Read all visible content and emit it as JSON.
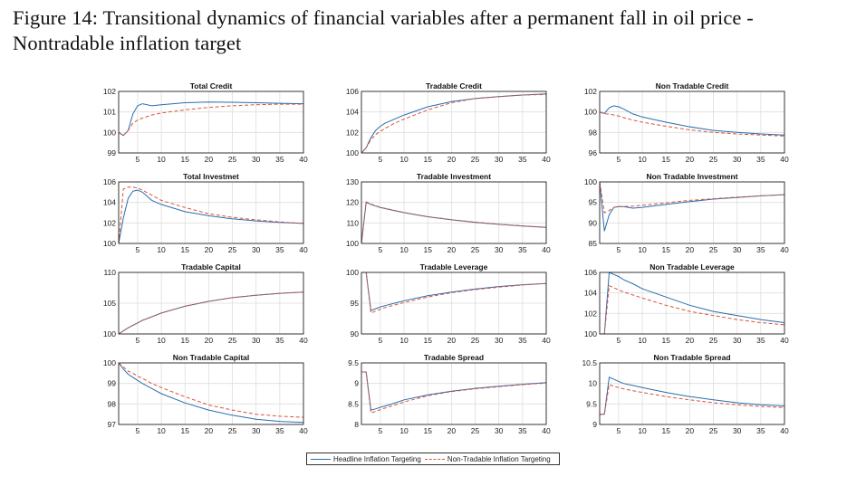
{
  "figure": {
    "title_line1": "Figure 14:  Transitional dynamics of financial variables after a permanent fall in oil price -",
    "title_line2": "Nontradable inflation target"
  },
  "legend": {
    "headline": "Headline Inflation Targeting",
    "nontradable": "Non-Tradable Inflation Targeting"
  },
  "colors": {
    "headline": "#2a6db0",
    "nontradable": "#d9543a",
    "grid": "#dedede"
  },
  "chart_data": {
    "type": "line",
    "x": [
      1,
      2,
      3,
      4,
      5,
      6,
      8,
      10,
      15,
      20,
      25,
      30,
      35,
      40
    ],
    "xlim": [
      1,
      40
    ],
    "xticks": [
      5,
      10,
      15,
      20,
      25,
      30,
      35,
      40
    ],
    "grid": true,
    "legend_placement": "bottom-center",
    "panels": [
      {
        "title": "Total Credit",
        "ylim": [
          99,
          102
        ],
        "yticks": [
          99,
          100,
          101,
          102
        ],
        "series": [
          {
            "name": "Headline Inflation Targeting",
            "values": [
              100,
              99.85,
              100.1,
              100.9,
              101.3,
              101.4,
              101.3,
              101.35,
              101.45,
              101.48,
              101.47,
              101.45,
              101.42,
              101.4
            ]
          },
          {
            "name": "Non-Tradable Inflation Targeting",
            "values": [
              100,
              99.85,
              100.1,
              100.45,
              100.6,
              100.7,
              100.85,
              100.95,
              101.1,
              101.22,
              101.3,
              101.35,
              101.38,
              101.38
            ]
          }
        ]
      },
      {
        "title": "Tradable Credit",
        "ylim": [
          100,
          106
        ],
        "yticks": [
          100,
          102,
          104,
          106
        ],
        "series": [
          {
            "name": "Headline Inflation Targeting",
            "values": [
              100,
              100.5,
              101.5,
              102.2,
              102.6,
              102.9,
              103.3,
              103.7,
              104.5,
              105.0,
              105.3,
              105.5,
              105.65,
              105.75
            ]
          },
          {
            "name": "Non-Tradable Inflation Targeting",
            "values": [
              100,
              100.5,
              101.3,
              101.8,
              102.1,
              102.4,
              102.9,
              103.3,
              104.2,
              104.9,
              105.3,
              105.5,
              105.65,
              105.7
            ]
          }
        ]
      },
      {
        "title": "Non Tradable Credit",
        "ylim": [
          96,
          102
        ],
        "yticks": [
          96,
          98,
          100,
          102
        ],
        "series": [
          {
            "name": "Headline Inflation Targeting",
            "values": [
              100,
              99.85,
              100.4,
              100.6,
              100.5,
              100.3,
              99.8,
              99.5,
              99.0,
              98.55,
              98.2,
              98.0,
              97.85,
              97.75
            ]
          },
          {
            "name": "Non-Tradable Inflation Targeting",
            "values": [
              100,
              99.8,
              99.8,
              99.7,
              99.6,
              99.45,
              99.2,
              99.0,
              98.6,
              98.25,
              98.0,
              97.85,
              97.75,
              97.65
            ]
          }
        ]
      },
      {
        "title": "Total Investmet",
        "ylim": [
          100,
          106
        ],
        "yticks": [
          100,
          102,
          104,
          106
        ],
        "series": [
          {
            "name": "Headline Inflation Targeting",
            "values": [
              100,
              102.5,
              104.4,
              105.1,
              105.2,
              105.0,
              104.2,
              103.8,
              103.1,
              102.7,
              102.4,
              102.2,
              102.05,
              101.95
            ]
          },
          {
            "name": "Non-Tradable Inflation Targeting",
            "values": [
              100,
              105.3,
              105.5,
              105.5,
              105.4,
              105.2,
              104.7,
              104.2,
              103.5,
              102.9,
              102.55,
              102.3,
              102.1,
              101.95
            ]
          }
        ]
      },
      {
        "title": "Tradable Investment",
        "ylim": [
          100,
          130
        ],
        "yticks": [
          100,
          110,
          120,
          130
        ],
        "series": [
          {
            "name": "Headline Inflation Targeting",
            "values": [
              100,
              120,
              119,
              118.2,
              117.5,
              117,
              116,
              115,
              113,
              111.5,
              110.3,
              109.3,
              108.5,
              107.8
            ]
          },
          {
            "name": "Non-Tradable Inflation Targeting",
            "values": [
              100,
              120.3,
              119.2,
              118.4,
              117.6,
              117.1,
              116.1,
              115.1,
              113.1,
              111.6,
              110.4,
              109.4,
              108.6,
              107.9
            ]
          }
        ]
      },
      {
        "title": "Non Tradable Investment",
        "ylim": [
          85,
          100
        ],
        "yticks": [
          85,
          90,
          95,
          100
        ],
        "series": [
          {
            "name": "Headline Inflation Targeting",
            "values": [
              100,
              88,
              92,
              93.8,
              94,
              94,
              93.6,
              93.8,
              94.5,
              95.2,
              95.8,
              96.2,
              96.6,
              96.9
            ]
          },
          {
            "name": "Non-Tradable Inflation Targeting",
            "values": [
              100,
              92.5,
              93,
              93.8,
              94,
              94,
              94.1,
              94.3,
              94.9,
              95.5,
              95.9,
              96.3,
              96.6,
              96.9
            ]
          }
        ]
      },
      {
        "title": "Tradable Capital",
        "ylim": [
          100,
          110
        ],
        "yticks": [
          100,
          105,
          110
        ],
        "series": [
          {
            "name": "Headline Inflation Targeting",
            "values": [
              100,
              100.5,
              101,
              101.4,
              101.8,
              102.2,
              102.8,
              103.4,
              104.5,
              105.3,
              105.9,
              106.3,
              106.6,
              106.8
            ]
          },
          {
            "name": "Non-Tradable Inflation Targeting",
            "values": [
              100,
              100.5,
              101,
              101.4,
              101.8,
              102.2,
              102.8,
              103.4,
              104.5,
              105.3,
              105.9,
              106.3,
              106.6,
              106.8
            ]
          }
        ]
      },
      {
        "title": "Tradable Leverage",
        "ylim": [
          90,
          100
        ],
        "yticks": [
          90,
          95,
          100
        ],
        "series": [
          {
            "name": "Headline Inflation Targeting",
            "values": [
              100,
              100,
              93.8,
              94.1,
              94.4,
              94.6,
              95.0,
              95.4,
              96.2,
              96.8,
              97.3,
              97.7,
              98.0,
              98.2
            ]
          },
          {
            "name": "Non-Tradable Inflation Targeting",
            "values": [
              100,
              100,
              93.4,
              93.7,
              94.0,
              94.3,
              94.7,
              95.1,
              96.0,
              96.7,
              97.2,
              97.6,
              97.95,
              98.2
            ]
          }
        ]
      },
      {
        "title": "Non Tradable Leverage",
        "ylim": [
          100,
          106
        ],
        "yticks": [
          100,
          102,
          104,
          106
        ],
        "series": [
          {
            "name": "Headline Inflation Targeting",
            "values": [
              100,
              100,
              106,
              105.8,
              105.6,
              105.3,
              104.9,
              104.4,
              103.6,
              102.8,
              102.2,
              101.8,
              101.4,
              101.1
            ]
          },
          {
            "name": "Non-Tradable Inflation Targeting",
            "values": [
              100,
              100,
              104.7,
              104.5,
              104.3,
              104.1,
              103.8,
              103.5,
              102.8,
              102.2,
              101.8,
              101.4,
              101.1,
              100.9
            ]
          }
        ]
      },
      {
        "title": "Non Tradable Capital",
        "ylim": [
          97,
          100
        ],
        "yticks": [
          97,
          98,
          99,
          100
        ],
        "series": [
          {
            "name": "Headline Inflation Targeting",
            "values": [
              100,
              99.7,
              99.45,
              99.3,
              99.15,
              99.0,
              98.75,
              98.5,
              98.05,
              97.7,
              97.45,
              97.25,
              97.15,
              97.1
            ]
          },
          {
            "name": "Non-Tradable Inflation Targeting",
            "values": [
              100,
              99.8,
              99.6,
              99.5,
              99.35,
              99.25,
              99.0,
              98.8,
              98.35,
              97.95,
              97.7,
              97.5,
              97.4,
              97.35
            ]
          }
        ]
      },
      {
        "title": "Tradable Spread",
        "ylim": [
          8,
          9.5
        ],
        "yticks": [
          8,
          8.5,
          9,
          9.5
        ],
        "series": [
          {
            "name": "Headline Inflation Targeting",
            "values": [
              9.28,
              9.28,
              8.35,
              8.38,
              8.42,
              8.45,
              8.52,
              8.6,
              8.72,
              8.81,
              8.88,
              8.93,
              8.98,
              9.02
            ]
          },
          {
            "name": "Non-Tradable Inflation Targeting",
            "values": [
              9.28,
              9.28,
              8.28,
              8.32,
              8.36,
              8.4,
              8.47,
              8.55,
              8.7,
              8.8,
              8.87,
              8.92,
              8.97,
              9.01
            ]
          }
        ]
      },
      {
        "title": "Non Tradable Spread",
        "ylim": [
          9,
          10.5
        ],
        "yticks": [
          9,
          9.5,
          10,
          10.5
        ],
        "series": [
          {
            "name": "Headline Inflation Targeting",
            "values": [
              9.25,
              9.25,
              10.15,
              10.1,
              10.05,
              10.0,
              9.95,
              9.9,
              9.78,
              9.68,
              9.6,
              9.53,
              9.48,
              9.45
            ]
          },
          {
            "name": "Non-Tradable Inflation Targeting",
            "values": [
              9.25,
              9.25,
              9.97,
              9.93,
              9.9,
              9.87,
              9.82,
              9.78,
              9.68,
              9.6,
              9.53,
              9.48,
              9.44,
              9.41
            ]
          }
        ]
      }
    ]
  }
}
